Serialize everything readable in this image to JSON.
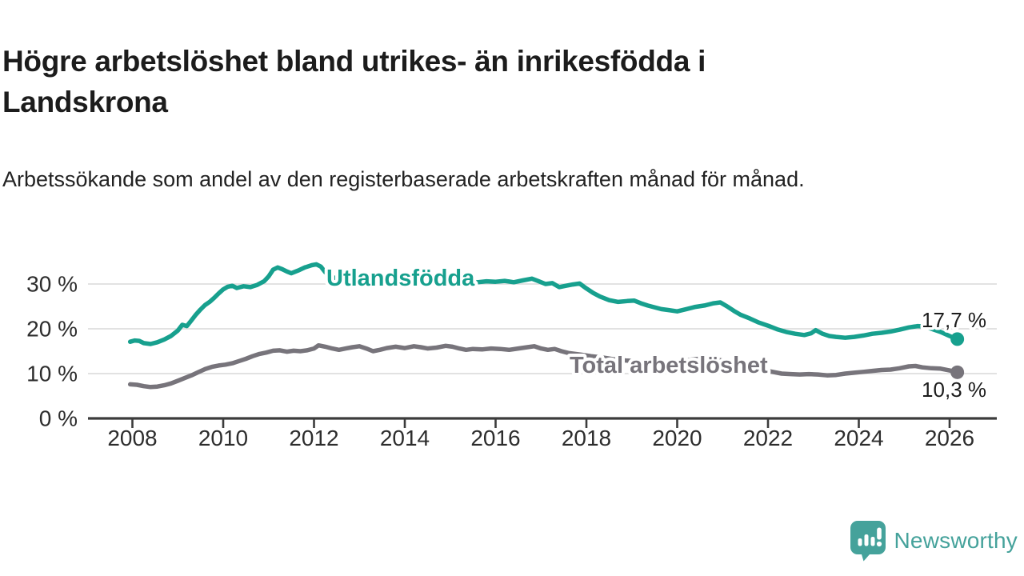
{
  "header": {
    "title": "Högre arbetslöshet bland utrikes- än inrikesfödda i Landskrona",
    "subtitle": "Arbetssökande som andel av den registerbaserade arbetskraften månad för månad."
  },
  "footer": {
    "brand": "Newsworthy"
  },
  "colors": {
    "foreign_born": "#17A08E",
    "total": "#77747B",
    "brand": "#45A29B",
    "grid": "#D9D9D9",
    "axis_line": "#3C3C3C",
    "axis_text": "#2D2D2D",
    "annotation_text": "#1C1C1C",
    "halo": "#FFFFFF"
  },
  "chart_data": {
    "type": "line",
    "title": "Högre arbetslöshet bland utrikes- än inrikesfödda i Landskrona",
    "subtitle": "Arbetssökande som andel av den registerbaserade arbetskraften månad för månad.",
    "xlabel": "",
    "ylabel": "",
    "legend_position": "inline-labels",
    "grid": true,
    "x_axis": {
      "range": [
        2007.0,
        2027.1
      ],
      "ticks": [
        {
          "v": 2008,
          "label": "2008"
        },
        {
          "v": 2010,
          "label": "2010"
        },
        {
          "v": 2012,
          "label": "2012"
        },
        {
          "v": 2014,
          "label": "2014"
        },
        {
          "v": 2016,
          "label": "2016"
        },
        {
          "v": 2018,
          "label": "2018"
        },
        {
          "v": 2020,
          "label": "2020"
        },
        {
          "v": 2022,
          "label": "2022"
        },
        {
          "v": 2024,
          "label": "2024"
        },
        {
          "v": 2026,
          "label": "2026"
        }
      ]
    },
    "y_axis": {
      "unit": "%",
      "range": [
        0,
        36
      ],
      "ticks": [
        {
          "v": 0,
          "label": "0 %"
        },
        {
          "v": 10,
          "label": "10 %"
        },
        {
          "v": 20,
          "label": "20 %"
        },
        {
          "v": 30,
          "label": "30 %"
        }
      ]
    },
    "series": [
      {
        "name": "Utlandsfödda",
        "color": "#17A08E",
        "end_label": "17,7 %",
        "end_value": 17.7,
        "points": [
          [
            2007.95,
            17.1
          ],
          [
            2008.05,
            17.4
          ],
          [
            2008.15,
            17.3
          ],
          [
            2008.25,
            16.8
          ],
          [
            2008.4,
            16.6
          ],
          [
            2008.55,
            17.0
          ],
          [
            2008.7,
            17.6
          ],
          [
            2008.85,
            18.4
          ],
          [
            2009.0,
            19.6
          ],
          [
            2009.1,
            20.9
          ],
          [
            2009.2,
            20.6
          ],
          [
            2009.3,
            21.9
          ],
          [
            2009.4,
            23.2
          ],
          [
            2009.5,
            24.3
          ],
          [
            2009.6,
            25.3
          ],
          [
            2009.7,
            26.0
          ],
          [
            2009.8,
            26.9
          ],
          [
            2009.9,
            27.9
          ],
          [
            2010.0,
            28.8
          ],
          [
            2010.1,
            29.4
          ],
          [
            2010.2,
            29.6
          ],
          [
            2010.3,
            29.1
          ],
          [
            2010.45,
            29.5
          ],
          [
            2010.6,
            29.3
          ],
          [
            2010.75,
            29.8
          ],
          [
            2010.9,
            30.6
          ],
          [
            2011.0,
            31.7
          ],
          [
            2011.1,
            33.2
          ],
          [
            2011.2,
            33.7
          ],
          [
            2011.3,
            33.3
          ],
          [
            2011.4,
            32.8
          ],
          [
            2011.5,
            32.4
          ],
          [
            2011.65,
            33.0
          ],
          [
            2011.8,
            33.7
          ],
          [
            2011.95,
            34.2
          ],
          [
            2012.05,
            34.4
          ],
          [
            2012.15,
            33.9
          ],
          [
            2012.25,
            32.6
          ],
          [
            2012.35,
            31.8
          ],
          [
            2012.45,
            31.4
          ],
          [
            2012.6,
            31.2
          ],
          [
            2012.75,
            30.8
          ],
          [
            2012.9,
            30.4
          ],
          [
            2013.05,
            30.7
          ],
          [
            2013.2,
            30.2
          ],
          [
            2013.35,
            29.6
          ],
          [
            2013.5,
            30.1
          ],
          [
            2013.65,
            30.5
          ],
          [
            2013.8,
            30.7
          ],
          [
            2014.0,
            30.9
          ],
          [
            2014.2,
            31.1
          ],
          [
            2014.4,
            30.8
          ],
          [
            2014.6,
            30.6
          ],
          [
            2014.8,
            30.5
          ],
          [
            2015.0,
            30.7
          ],
          [
            2015.2,
            30.9
          ],
          [
            2015.4,
            30.6
          ],
          [
            2015.6,
            30.4
          ],
          [
            2015.8,
            30.6
          ],
          [
            2016.0,
            30.5
          ],
          [
            2016.2,
            30.7
          ],
          [
            2016.4,
            30.4
          ],
          [
            2016.6,
            30.8
          ],
          [
            2016.8,
            31.2
          ],
          [
            2016.95,
            30.6
          ],
          [
            2017.1,
            30.0
          ],
          [
            2017.25,
            30.2
          ],
          [
            2017.4,
            29.3
          ],
          [
            2017.55,
            29.6
          ],
          [
            2017.7,
            29.9
          ],
          [
            2017.85,
            30.1
          ],
          [
            2018.0,
            29.0
          ],
          [
            2018.15,
            28.0
          ],
          [
            2018.3,
            27.2
          ],
          [
            2018.5,
            26.4
          ],
          [
            2018.7,
            26.0
          ],
          [
            2018.9,
            26.2
          ],
          [
            2019.05,
            26.3
          ],
          [
            2019.2,
            25.7
          ],
          [
            2019.35,
            25.2
          ],
          [
            2019.5,
            24.8
          ],
          [
            2019.65,
            24.4
          ],
          [
            2019.8,
            24.2
          ],
          [
            2020.0,
            23.9
          ],
          [
            2020.2,
            24.4
          ],
          [
            2020.4,
            24.9
          ],
          [
            2020.6,
            25.2
          ],
          [
            2020.8,
            25.7
          ],
          [
            2020.95,
            25.9
          ],
          [
            2021.1,
            25.0
          ],
          [
            2021.25,
            24.0
          ],
          [
            2021.4,
            23.1
          ],
          [
            2021.6,
            22.3
          ],
          [
            2021.8,
            21.4
          ],
          [
            2022.0,
            20.7
          ],
          [
            2022.2,
            19.9
          ],
          [
            2022.4,
            19.3
          ],
          [
            2022.6,
            18.9
          ],
          [
            2022.8,
            18.6
          ],
          [
            2022.95,
            19.0
          ],
          [
            2023.05,
            19.7
          ],
          [
            2023.2,
            18.9
          ],
          [
            2023.35,
            18.4
          ],
          [
            2023.5,
            18.2
          ],
          [
            2023.7,
            18.0
          ],
          [
            2023.9,
            18.2
          ],
          [
            2024.1,
            18.5
          ],
          [
            2024.3,
            18.9
          ],
          [
            2024.5,
            19.1
          ],
          [
            2024.7,
            19.4
          ],
          [
            2024.9,
            19.8
          ],
          [
            2025.1,
            20.3
          ],
          [
            2025.3,
            20.6
          ],
          [
            2025.45,
            20.5
          ],
          [
            2025.6,
            20.0
          ],
          [
            2025.8,
            19.3
          ],
          [
            2026.0,
            18.4
          ],
          [
            2026.17,
            17.7
          ]
        ]
      },
      {
        "name": "Total arbetslöshet",
        "color": "#77747B",
        "end_label": "10,3 %",
        "end_value": 10.3,
        "points": [
          [
            2007.95,
            7.6
          ],
          [
            2008.1,
            7.5
          ],
          [
            2008.25,
            7.2
          ],
          [
            2008.4,
            7.0
          ],
          [
            2008.55,
            7.1
          ],
          [
            2008.7,
            7.4
          ],
          [
            2008.85,
            7.8
          ],
          [
            2009.0,
            8.4
          ],
          [
            2009.15,
            9.0
          ],
          [
            2009.3,
            9.6
          ],
          [
            2009.45,
            10.3
          ],
          [
            2009.6,
            11.0
          ],
          [
            2009.75,
            11.5
          ],
          [
            2009.9,
            11.8
          ],
          [
            2010.05,
            12.0
          ],
          [
            2010.2,
            12.3
          ],
          [
            2010.35,
            12.8
          ],
          [
            2010.5,
            13.3
          ],
          [
            2010.65,
            13.9
          ],
          [
            2010.8,
            14.4
          ],
          [
            2010.95,
            14.7
          ],
          [
            2011.1,
            15.1
          ],
          [
            2011.25,
            15.2
          ],
          [
            2011.4,
            14.9
          ],
          [
            2011.55,
            15.1
          ],
          [
            2011.7,
            15.0
          ],
          [
            2011.85,
            15.2
          ],
          [
            2012.0,
            15.6
          ],
          [
            2012.1,
            16.3
          ],
          [
            2012.25,
            16.0
          ],
          [
            2012.4,
            15.6
          ],
          [
            2012.55,
            15.3
          ],
          [
            2012.7,
            15.6
          ],
          [
            2012.85,
            15.9
          ],
          [
            2013.0,
            16.1
          ],
          [
            2013.15,
            15.6
          ],
          [
            2013.3,
            15.0
          ],
          [
            2013.45,
            15.3
          ],
          [
            2013.6,
            15.7
          ],
          [
            2013.8,
            16.0
          ],
          [
            2014.0,
            15.7
          ],
          [
            2014.2,
            16.1
          ],
          [
            2014.35,
            15.9
          ],
          [
            2014.5,
            15.6
          ],
          [
            2014.7,
            15.8
          ],
          [
            2014.9,
            16.2
          ],
          [
            2015.05,
            16.0
          ],
          [
            2015.2,
            15.6
          ],
          [
            2015.35,
            15.3
          ],
          [
            2015.5,
            15.5
          ],
          [
            2015.7,
            15.4
          ],
          [
            2015.9,
            15.6
          ],
          [
            2016.1,
            15.5
          ],
          [
            2016.3,
            15.3
          ],
          [
            2016.5,
            15.6
          ],
          [
            2016.7,
            15.9
          ],
          [
            2016.85,
            16.1
          ],
          [
            2017.0,
            15.6
          ],
          [
            2017.15,
            15.3
          ],
          [
            2017.3,
            15.5
          ],
          [
            2017.45,
            15.0
          ],
          [
            2017.6,
            14.6
          ],
          [
            2017.75,
            14.4
          ],
          [
            2017.9,
            14.2
          ],
          [
            2018.1,
            13.9
          ],
          [
            2018.35,
            13.6
          ],
          [
            2018.6,
            13.2
          ],
          [
            2018.9,
            12.9
          ],
          [
            2019.2,
            12.7
          ],
          [
            2019.5,
            12.5
          ],
          [
            2019.8,
            12.3
          ],
          [
            2020.1,
            12.7
          ],
          [
            2020.35,
            13.2
          ],
          [
            2020.6,
            13.4
          ],
          [
            2020.85,
            13.2
          ],
          [
            2021.1,
            12.7
          ],
          [
            2021.35,
            12.1
          ],
          [
            2021.6,
            11.5
          ],
          [
            2021.85,
            10.9
          ],
          [
            2022.1,
            10.4
          ],
          [
            2022.3,
            10.0
          ],
          [
            2022.5,
            9.9
          ],
          [
            2022.7,
            9.8
          ],
          [
            2022.9,
            9.9
          ],
          [
            2023.1,
            9.8
          ],
          [
            2023.3,
            9.6
          ],
          [
            2023.5,
            9.7
          ],
          [
            2023.7,
            10.0
          ],
          [
            2023.9,
            10.2
          ],
          [
            2024.1,
            10.4
          ],
          [
            2024.3,
            10.6
          ],
          [
            2024.5,
            10.8
          ],
          [
            2024.7,
            10.9
          ],
          [
            2024.9,
            11.2
          ],
          [
            2025.1,
            11.6
          ],
          [
            2025.25,
            11.7
          ],
          [
            2025.4,
            11.4
          ],
          [
            2025.6,
            11.2
          ],
          [
            2025.8,
            11.1
          ],
          [
            2026.0,
            10.7
          ],
          [
            2026.17,
            10.3
          ]
        ]
      }
    ]
  }
}
